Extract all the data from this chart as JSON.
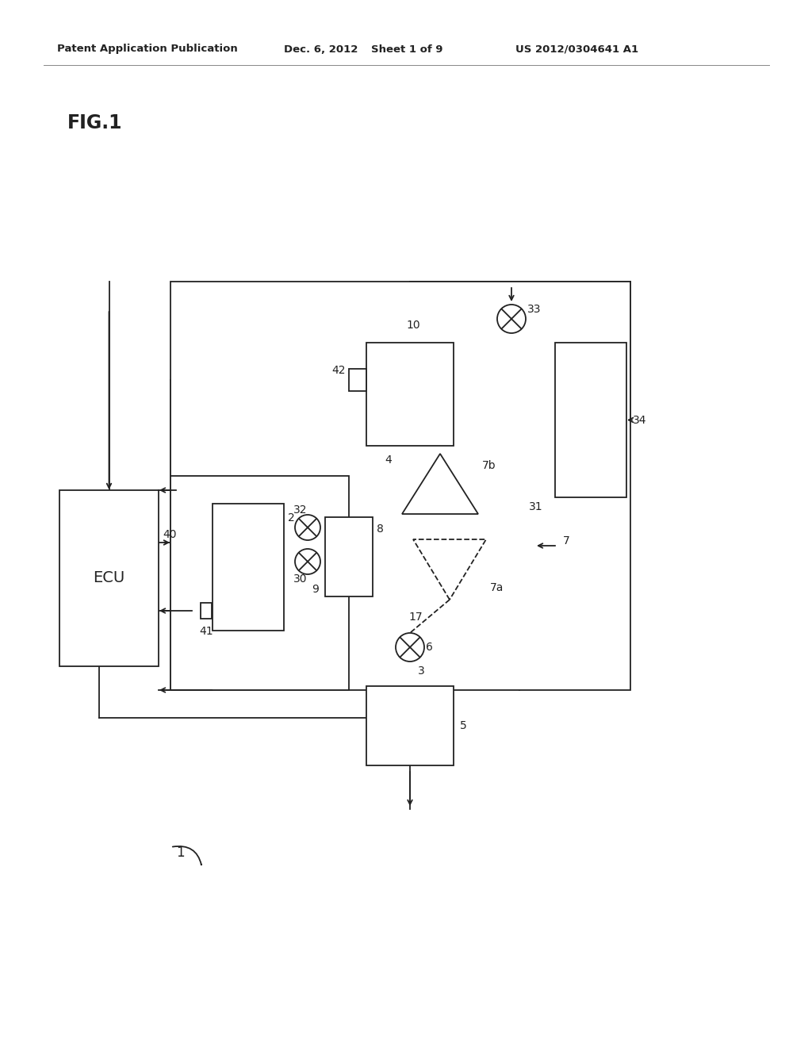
{
  "bg_color": "#ffffff",
  "line_color": "#222222",
  "header_text1": "Patent Application Publication",
  "header_text2": "Dec. 6, 2012",
  "header_text3": "Sheet 1 of 9",
  "header_text4": "US 2012/0304641 A1",
  "fig_label": "FIG.1",
  "lw": 1.3
}
